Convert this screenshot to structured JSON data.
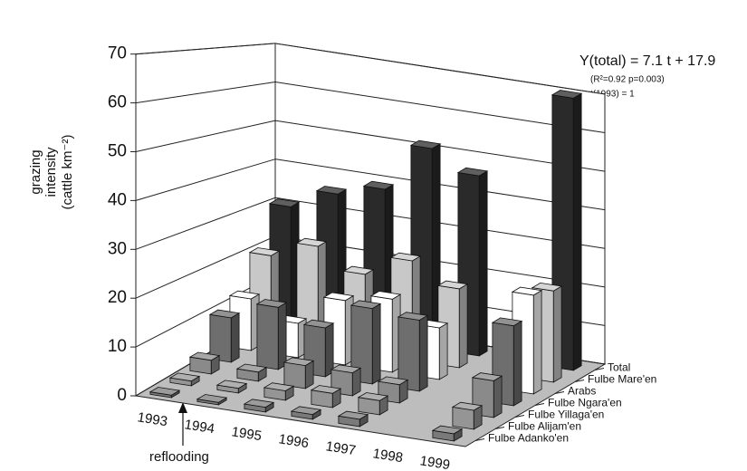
{
  "chart_data": {
    "type": "bar3d",
    "ylabel": [
      "grazing",
      "intensity",
      "(cattle km⁻²)"
    ],
    "annotations": [
      "Y(total) = 7.1 t + 17.9",
      "(R²=0.92   p=0.003)",
      "t(1993) = 1",
      "reflooding"
    ],
    "categories": [
      "1993",
      "1994",
      "1995",
      "1996",
      "1997",
      "1998",
      "1999"
    ],
    "series": [
      {
        "name": "Fulbe Adanko'en",
        "color": "#7a7a7a",
        "values": [
          0.5,
          0.5,
          1,
          1,
          1.5,
          null,
          1.5
        ]
      },
      {
        "name": "Fulbe Alijam'en",
        "color": "#959595",
        "values": [
          1,
          1,
          2,
          3,
          3,
          null,
          4
        ]
      },
      {
        "name": "Fulbe Yillaga'en",
        "color": "#8a8a8a",
        "values": [
          3,
          2,
          5,
          5,
          4,
          null,
          8
        ]
      },
      {
        "name": "Fulbe Ngara'en",
        "color": "#6e6e6e",
        "values": [
          10,
          14,
          11,
          17,
          16,
          null,
          18
        ]
      },
      {
        "name": "Arabs",
        "color": "#ffffff",
        "values": [
          12,
          8,
          15,
          17,
          12,
          null,
          23
        ]
      },
      {
        "name": "Fulbe Mare'en",
        "color": "#c8c8c8",
        "values": [
          20,
          24,
          19,
          24,
          19,
          null,
          22
        ]
      },
      {
        "name": "Total",
        "color": "#2a2a2a",
        "values": [
          30,
          35,
          38,
          50,
          45,
          null,
          68
        ]
      }
    ],
    "ylim": [
      0,
      70
    ],
    "yticks": [
      0,
      10,
      20,
      30,
      40,
      50,
      60,
      70
    ],
    "grid": true
  }
}
